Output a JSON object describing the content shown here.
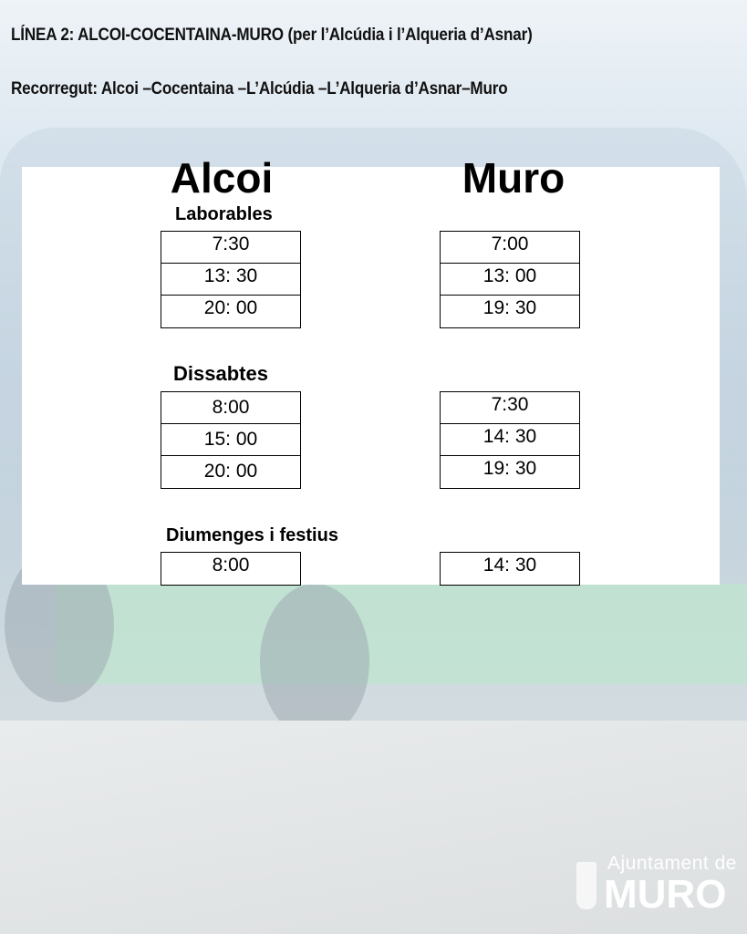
{
  "header": {
    "title": "LÍNEA 2: ALCOI-COCENTAINA-MURO (per l’Alcúdia i l’Alqueria d’Asnar)",
    "route": "Recorregut: Alcoi –Cocentaina –L’Alcúdia –L’Alqueria d’Asnar–Muro"
  },
  "schedule": {
    "origins": [
      "Alcoi",
      "Muro"
    ],
    "sections": [
      {
        "label": "Laborables",
        "alcoi": [
          "7:30",
          "13: 30",
          "20: 00"
        ],
        "muro": [
          "7:00",
          "13: 00",
          "19: 30"
        ]
      },
      {
        "label": "Dissabtes",
        "alcoi": [
          "8:00",
          "15: 00",
          "20: 00"
        ],
        "muro": [
          "7:30",
          "14: 30",
          "19: 30"
        ]
      },
      {
        "label": "Diumenges i festius",
        "alcoi": [
          "8:00"
        ],
        "muro": [
          "14: 30"
        ]
      }
    ]
  },
  "logo": {
    "line1": "Ajuntament de",
    "line2": "MURO"
  }
}
